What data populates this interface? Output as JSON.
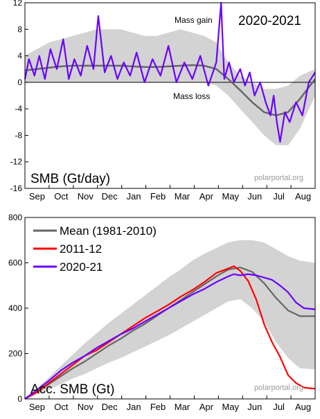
{
  "chart_data": [
    {
      "type": "line",
      "title": "2020-2021",
      "panel_label": "SMB (Gt/day)",
      "watermark": "polarportal.org",
      "annotations": {
        "gain": "Mass gain",
        "loss": "Mass loss"
      },
      "ylim": [
        -16,
        12
      ],
      "yticks": [
        "12",
        "8",
        "4",
        "0",
        "-4",
        "-8",
        "-12",
        "-16"
      ],
      "months": [
        "Sep",
        "Oct",
        "Nov",
        "Dec",
        "Jan",
        "Feb",
        "Mar",
        "Apr",
        "May",
        "Jun",
        "Jul",
        "Aug"
      ],
      "colors": {
        "mean": "#666666",
        "current": "#6a00ff",
        "band": "#d3d3d3",
        "zero": "#000000"
      },
      "series": [
        {
          "name": "Mean (1981-2010)",
          "x": [
            0,
            15,
            30,
            45,
            60,
            75,
            90,
            105,
            120,
            135,
            150,
            165,
            180,
            195,
            210,
            225,
            240,
            255,
            270,
            285,
            300,
            315,
            330,
            345,
            364
          ],
          "values": [
            1.8,
            2.0,
            2.2,
            2.4,
            2.5,
            2.5,
            2.5,
            2.5,
            2.5,
            2.4,
            2.3,
            2.3,
            2.4,
            2.5,
            2.6,
            2.5,
            2.0,
            0.5,
            -1.2,
            -3.0,
            -4.5,
            -5.0,
            -4.5,
            -2.5,
            0.5
          ]
        },
        {
          "name": "2020-21",
          "x": [
            0,
            5,
            12,
            18,
            25,
            32,
            40,
            48,
            55,
            62,
            70,
            78,
            86,
            92,
            100,
            108,
            116,
            124,
            132,
            140,
            150,
            160,
            170,
            180,
            190,
            200,
            210,
            220,
            230,
            240,
            246,
            250,
            256,
            262,
            270,
            276,
            282,
            288,
            295,
            302,
            308,
            312,
            316,
            320,
            326,
            332,
            340,
            348,
            356,
            364
          ],
          "values": [
            0.5,
            3.5,
            1.0,
            4.0,
            0.5,
            5.0,
            2.0,
            6.5,
            0.5,
            3.5,
            1.0,
            5.5,
            2.0,
            10.0,
            1.5,
            4.0,
            0.5,
            3.0,
            1.0,
            4.5,
            0.0,
            3.5,
            1.0,
            5.5,
            0.0,
            3.0,
            0.5,
            4.0,
            -0.5,
            3.0,
            12.0,
            0.5,
            3.0,
            0.0,
            2.0,
            -0.5,
            1.5,
            -2.0,
            0.0,
            -3.0,
            -5.0,
            -2.0,
            -6.0,
            -9.0,
            -4.5,
            -6.0,
            -3.0,
            -5.0,
            0.0,
            1.5
          ]
        }
      ],
      "band": {
        "x": [
          0,
          15,
          30,
          45,
          60,
          75,
          90,
          105,
          120,
          135,
          150,
          165,
          180,
          195,
          210,
          225,
          240,
          255,
          270,
          285,
          300,
          315,
          330,
          345,
          364
        ],
        "upper": [
          4,
          5,
          6,
          6.5,
          7,
          7.5,
          8,
          8,
          8,
          7.5,
          7,
          7,
          7.5,
          8,
          7.5,
          7,
          6,
          3,
          1,
          0,
          -1,
          -1,
          -0.5,
          1,
          2
        ],
        "lower": [
          0,
          0,
          0,
          0,
          0,
          0,
          0,
          0,
          0,
          0,
          0,
          0,
          0,
          0,
          0,
          0,
          -0.5,
          -2,
          -4,
          -6,
          -8,
          -9.5,
          -9.5,
          -7,
          -2
        ]
      }
    },
    {
      "type": "line",
      "panel_label": "Acc. SMB (Gt)",
      "watermark": "polarportal.org",
      "ylim": [
        0,
        800
      ],
      "yticks": [
        "800",
        "600",
        "400",
        "200",
        "0"
      ],
      "months": [
        "Sep",
        "Oct",
        "Nov",
        "Dec",
        "Jan",
        "Feb",
        "Mar",
        "Apr",
        "May",
        "Jun",
        "Jul",
        "Aug"
      ],
      "legend_position": "top-left",
      "colors": {
        "mean": "#666666",
        "y2011": "#ff0000",
        "y2020": "#6a00ff",
        "band": "#d3d3d3"
      },
      "series": [
        {
          "name": "Mean (1981-2010)",
          "color": "#666666",
          "x": [
            0,
            15,
            30,
            45,
            60,
            75,
            90,
            105,
            120,
            135,
            150,
            165,
            180,
            195,
            210,
            225,
            240,
            255,
            270,
            285,
            300,
            315,
            330,
            345,
            364
          ],
          "values": [
            0,
            30,
            65,
            100,
            135,
            165,
            200,
            235,
            265,
            300,
            330,
            365,
            400,
            435,
            470,
            505,
            540,
            570,
            580,
            560,
            510,
            445,
            390,
            365,
            365
          ]
        },
        {
          "name": "2011-12",
          "color": "#ff0000",
          "x": [
            0,
            15,
            30,
            45,
            60,
            75,
            90,
            105,
            120,
            135,
            150,
            165,
            180,
            195,
            210,
            225,
            240,
            255,
            262,
            270,
            280,
            290,
            300,
            310,
            320,
            330,
            340,
            350,
            364
          ],
          "values": [
            0,
            30,
            70,
            110,
            150,
            190,
            215,
            250,
            285,
            320,
            355,
            385,
            415,
            450,
            480,
            515,
            555,
            575,
            585,
            565,
            520,
            440,
            330,
            250,
            185,
            105,
            70,
            50,
            45
          ]
        },
        {
          "name": "2020-21",
          "color": "#6a00ff",
          "x": [
            0,
            15,
            30,
            45,
            60,
            75,
            90,
            105,
            120,
            135,
            150,
            165,
            180,
            195,
            210,
            225,
            240,
            255,
            262,
            270,
            280,
            290,
            300,
            310,
            320,
            330,
            340,
            350,
            364
          ],
          "values": [
            0,
            40,
            80,
            125,
            160,
            190,
            225,
            255,
            285,
            310,
            340,
            370,
            400,
            430,
            460,
            485,
            515,
            540,
            550,
            545,
            550,
            545,
            535,
            525,
            500,
            470,
            425,
            400,
            395
          ]
        }
      ],
      "band": {
        "x": [
          0,
          15,
          30,
          45,
          60,
          75,
          90,
          105,
          120,
          135,
          150,
          165,
          180,
          195,
          210,
          225,
          240,
          255,
          270,
          285,
          300,
          315,
          330,
          345,
          364
        ],
        "upper": [
          0,
          45,
          95,
          145,
          195,
          245,
          290,
          335,
          375,
          415,
          455,
          495,
          535,
          570,
          610,
          640,
          665,
          690,
          700,
          700,
          690,
          660,
          630,
          610,
          600
        ],
        "lower": [
          0,
          20,
          40,
          65,
          90,
          110,
          135,
          160,
          180,
          205,
          230,
          255,
          280,
          310,
          340,
          370,
          400,
          430,
          440,
          400,
          340,
          250,
          180,
          135,
          130
        ]
      }
    }
  ]
}
